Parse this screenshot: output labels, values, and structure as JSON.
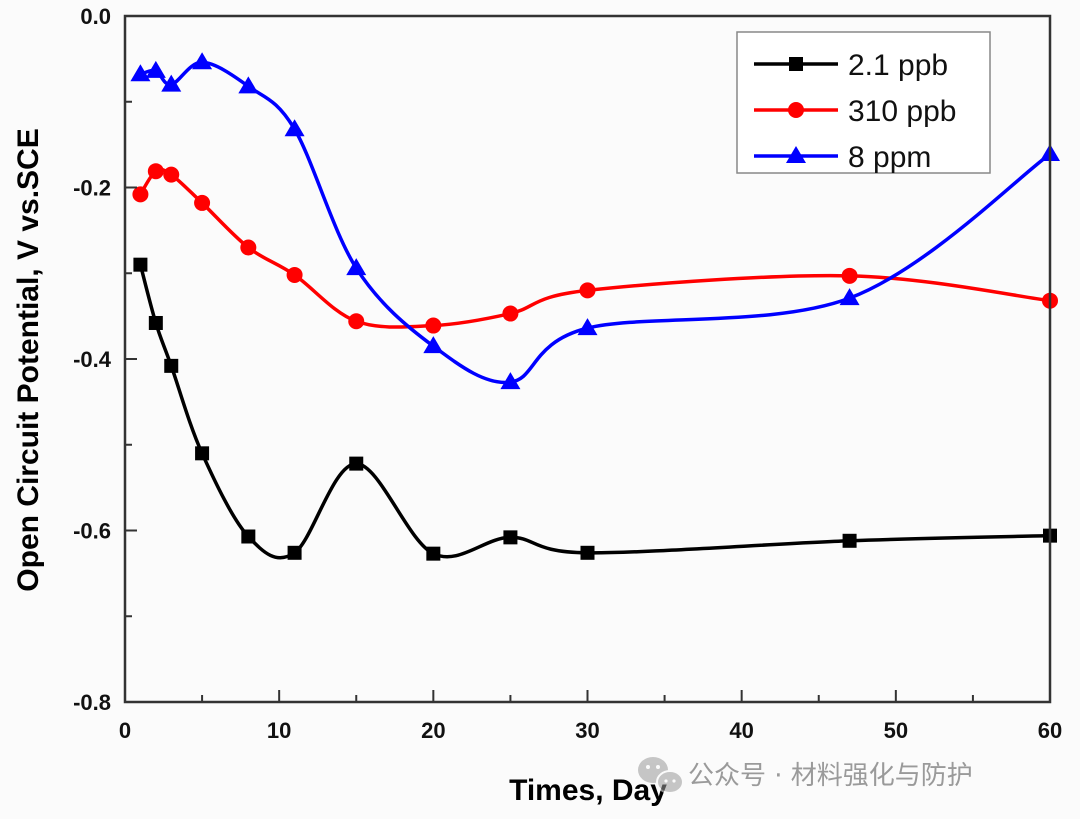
{
  "chart_data": {
    "type": "line",
    "title": "",
    "xlabel": "Times, Day",
    "ylabel": "Open Circuit Potential, V vs.SCE",
    "xlim": [
      0,
      60
    ],
    "ylim": [
      -0.8,
      0.0
    ],
    "x_ticks": [
      0,
      10,
      20,
      30,
      40,
      50,
      60
    ],
    "x_tick_labels": [
      "0",
      "10",
      "20",
      "30",
      "40",
      "50",
      "60"
    ],
    "x_minor_step": 5,
    "y_ticks": [
      0.0,
      -0.2,
      -0.4,
      -0.6,
      -0.8
    ],
    "y_tick_labels": [
      "0.0",
      "-0.2",
      "-0.4",
      "-0.6",
      "-0.8"
    ],
    "y_minor_step": 0.1,
    "grid": false,
    "legend_position": "top-right",
    "smooth": true,
    "series": [
      {
        "name": "2.1 ppb",
        "color": "#000000",
        "marker": "square",
        "x": [
          1,
          2,
          3,
          5,
          8,
          11,
          15,
          20,
          25,
          30,
          47,
          60
        ],
        "y": [
          -0.29,
          -0.358,
          -0.408,
          -0.51,
          -0.607,
          -0.626,
          -0.522,
          -0.627,
          -0.608,
          -0.626,
          -0.612,
          -0.606
        ]
      },
      {
        "name": "310 ppb",
        "color": "#ff0000",
        "marker": "circle",
        "x": [
          1,
          2,
          3,
          5,
          8,
          11,
          15,
          20,
          25,
          30,
          47,
          60
        ],
        "y": [
          -0.208,
          -0.181,
          -0.185,
          -0.218,
          -0.27,
          -0.302,
          -0.356,
          -0.361,
          -0.347,
          -0.32,
          -0.303,
          -0.332
        ]
      },
      {
        "name": "8 ppm",
        "color": "#0000ff",
        "marker": "triangle",
        "x": [
          1,
          2,
          3,
          5,
          8,
          11,
          15,
          20,
          25,
          30,
          47,
          60
        ],
        "y": [
          -0.068,
          -0.064,
          -0.08,
          -0.054,
          -0.082,
          -0.132,
          -0.294,
          -0.385,
          -0.427,
          -0.364,
          -0.329,
          -0.161
        ]
      }
    ]
  },
  "watermark": {
    "icon": "wechat-icon",
    "text": "公众号 · 材料强化与防护"
  }
}
